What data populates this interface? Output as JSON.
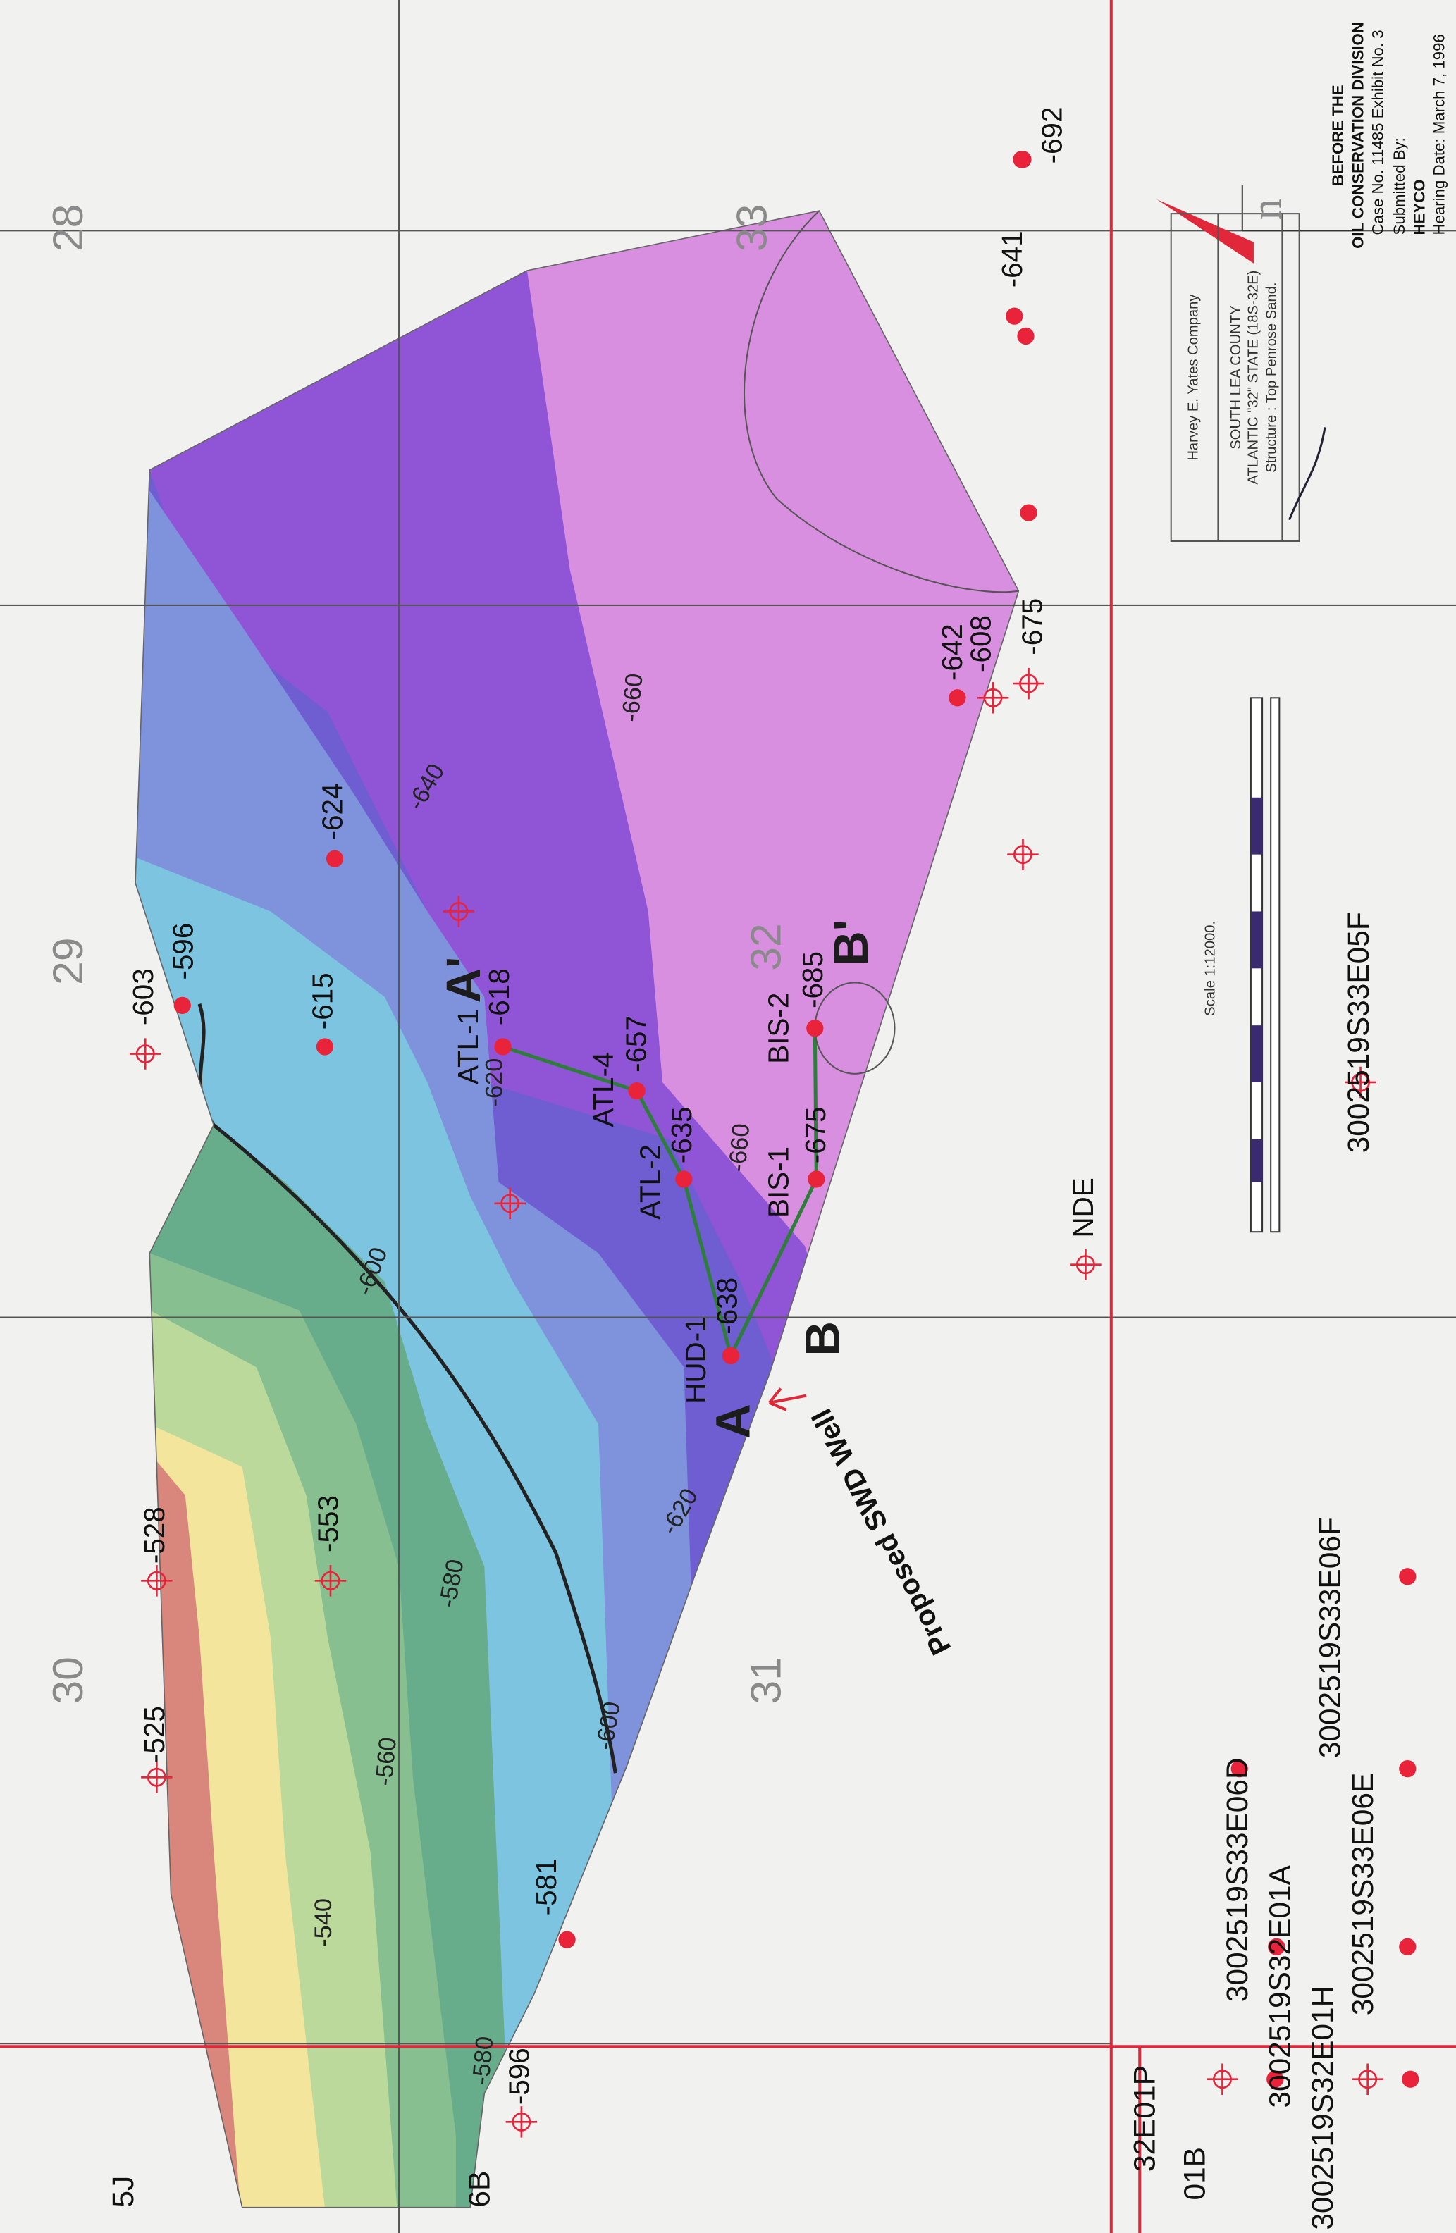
{
  "sections": [
    "28",
    "29",
    "30",
    "31",
    "32",
    "33"
  ],
  "wells": [
    {
      "value": -641
    },
    {
      "value": -692
    },
    {
      "value": -642
    },
    {
      "value": -608
    },
    {
      "value": -675
    },
    {
      "value": -624
    },
    {
      "value": -603
    },
    {
      "value": -596
    },
    {
      "value": -615
    },
    {
      "name": "ATL-1",
      "value": -618
    },
    {
      "name": "ATL-4",
      "value": -657
    },
    {
      "name": "ATL-2",
      "value": -635
    },
    {
      "name": "BIS-1",
      "value": -675
    },
    {
      "name": "BIS-2",
      "value": -685
    },
    {
      "name": "HUD-1",
      "value": -638
    },
    {
      "value": -528
    },
    {
      "value": -553
    },
    {
      "value": -525
    },
    {
      "value": -581
    },
    {
      "value": -596
    },
    {
      "name": "NDE"
    }
  ],
  "cross_sections": [
    "A",
    "A'",
    "B",
    "B'"
  ],
  "contours": [
    -600,
    -620,
    -660,
    -640,
    -660,
    -580,
    -600,
    -560,
    -540,
    -580,
    -620
  ],
  "annotation": "Proposed SWD Well",
  "api_labels": [
    "3002519S33E06D",
    "3002519S32E01A",
    "3002519S33E06E",
    "3002519S33E06F",
    "3002519S33E05F",
    "3002519S32E01H",
    "32E01P",
    "01B",
    "5J",
    "6B"
  ],
  "title_block": {
    "company": "Harvey E. Yates Company",
    "county": "SOUTH LEA COUNTY",
    "lease": "ATLANTIC \"32\" STATE (18S-32E)",
    "structure": "Structure : Top Penrose Sand."
  },
  "scale": "Scale 1:12000.",
  "north": "n",
  "exhibit": {
    "heading": "BEFORE THE",
    "division": "OIL CONSERVATION DIVISION",
    "case": "Case No. 11485 Exhibit No. 3",
    "submitted": "Submitted By:",
    "company": "HEYCO",
    "hearing": "Hearing Date: March 7, 1996"
  }
}
